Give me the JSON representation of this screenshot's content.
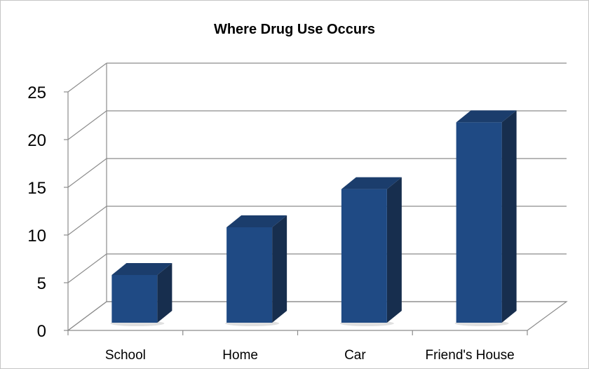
{
  "chart_data": {
    "type": "bar",
    "title": "Where Drug Use Occurs",
    "categories": [
      "School",
      "Home",
      "Car",
      "Friend's House"
    ],
    "values": [
      5,
      10,
      14,
      21
    ],
    "xlabel": "",
    "ylabel": "",
    "ylim": [
      0,
      25
    ],
    "yticks": [
      "0",
      "5",
      "10",
      "15",
      "20",
      "25"
    ],
    "grid": true,
    "style": "3d-column",
    "colors": {
      "bar_front": "#1f4a84",
      "bar_side": "#172e4e",
      "bar_top": "#1b3d6c",
      "grid": "#8c8c8c"
    }
  }
}
